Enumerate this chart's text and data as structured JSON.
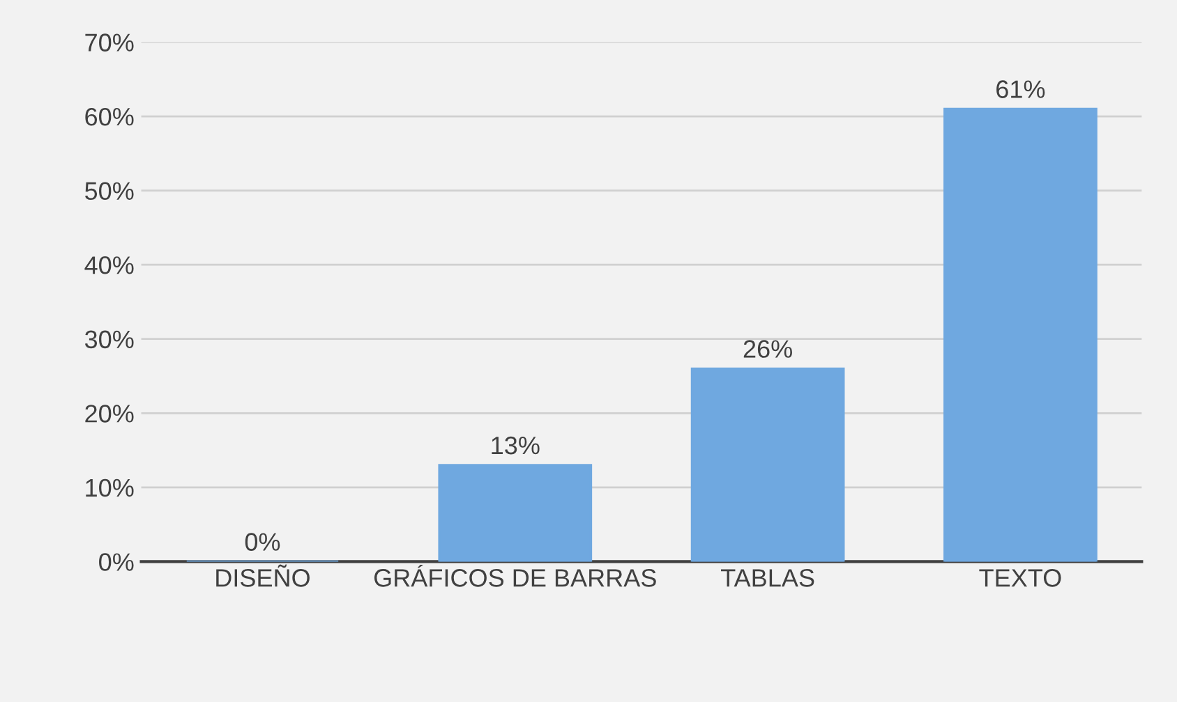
{
  "chart_data": {
    "type": "bar",
    "categories": [
      "DISEÑO",
      "GRÁFICOS DE BARRAS",
      "TABLAS",
      "TEXTO"
    ],
    "values": [
      0,
      13,
      26,
      61
    ],
    "value_labels": [
      "0%",
      "13%",
      "26%",
      "61%"
    ],
    "color": "#6fa8e0",
    "ylim": [
      0,
      70
    ],
    "yticks": [
      {
        "value": 0,
        "label": "0%"
      },
      {
        "value": 10,
        "label": "10%"
      },
      {
        "value": 20,
        "label": "20%"
      },
      {
        "value": 30,
        "label": "30%"
      },
      {
        "value": 40,
        "label": "40%"
      },
      {
        "value": 50,
        "label": "50%"
      },
      {
        "value": 60,
        "label": "60%"
      },
      {
        "value": 70,
        "label": "70%"
      }
    ],
    "grid": "y"
  }
}
